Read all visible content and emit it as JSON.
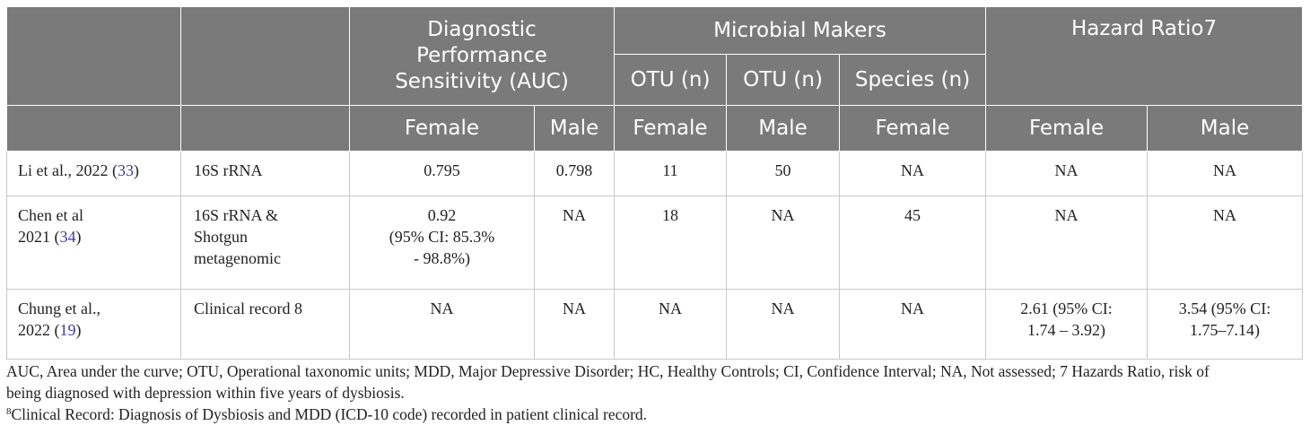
{
  "header": {
    "diag_perf": "Diagnostic Performance Sensitivity (AUC)",
    "microbial": "Microbial Makers",
    "hazard": "Hazard Ratio7",
    "otu1": "OTU (n)",
    "otu2": "OTU (n)",
    "species": "Species (n)",
    "female": "Female",
    "male": "Male"
  },
  "rows": [
    {
      "study": "Li et al., 2022",
      "ref": "33",
      "method": "16S rRNA",
      "auc_female": "0.795",
      "auc_male": "0.798",
      "otu_female": "11",
      "otu_male": "50",
      "species_female": "NA",
      "hr_female": "NA",
      "hr_male": "NA"
    },
    {
      "study_line1": "Chen et al",
      "study_line2": "2021",
      "ref": "34",
      "method_line1": "16S rRNA &",
      "method_line2": "Shotgun",
      "method_line3": "metagenomic",
      "auc_female_line1": "0.92",
      "auc_female_line2": "(95% CI: 85.3%",
      "auc_female_line3": "- 98.8%)",
      "auc_male": "NA",
      "otu_female": "18",
      "otu_male": "NA",
      "species_female": "45",
      "hr_female": "NA",
      "hr_male": "NA"
    },
    {
      "study_line1": "Chung et al.,",
      "study_line2": "2022",
      "ref": "19",
      "method": "Clinical record 8",
      "auc_female": "NA",
      "auc_male": "NA",
      "otu_female": "NA",
      "otu_male": "NA",
      "species_female": "NA",
      "hr_female_line1": "2.61 (95% CI:",
      "hr_female_line2": "1.74 – 3.92)",
      "hr_male_line1": "3.54 (95% CI:",
      "hr_male_line2": "1.75–7.14)"
    }
  ],
  "footnotes": {
    "line1": "AUC, Area under the curve; OTU, Operational taxonomic units; MDD, Major Depressive Disorder; HC, Healthy Controls; CI, Confidence Interval; NA, Not assessed; 7 Hazards Ratio, risk of",
    "line2": "being diagnosed with depression within five years of dysbiosis.",
    "sup": "8",
    "line3": "Clinical Record: Diagnosis of Dysbiosis and MDD (ICD-10 code) recorded in patient clinical record."
  },
  "colors": {
    "header_bg": "#7a7a7a",
    "header_text": "#ffffff",
    "reference_link": "#3a3aa8"
  }
}
